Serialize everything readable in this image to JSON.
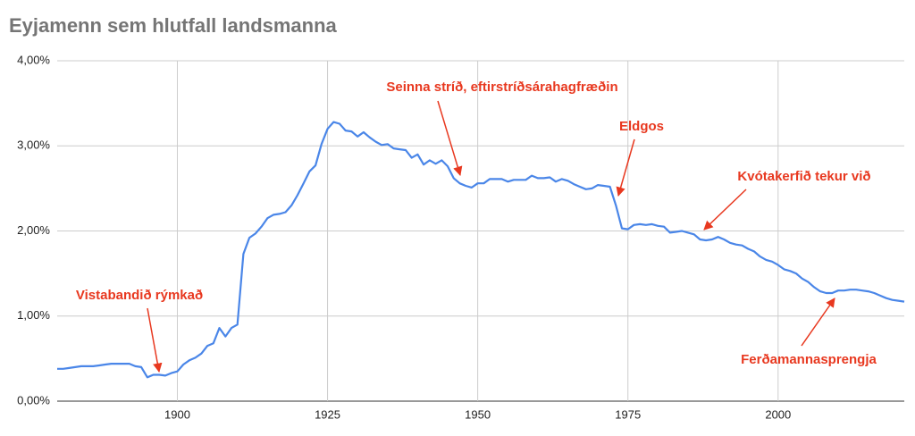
{
  "chart_data": {
    "type": "line",
    "title": "Eyjamenn sem hlutfall landsmanna",
    "x": [
      1880,
      1881,
      1882,
      1883,
      1884,
      1885,
      1886,
      1887,
      1888,
      1889,
      1890,
      1891,
      1892,
      1893,
      1894,
      1895,
      1896,
      1897,
      1898,
      1899,
      1900,
      1901,
      1902,
      1903,
      1904,
      1905,
      1906,
      1907,
      1908,
      1909,
      1910,
      1911,
      1912,
      1913,
      1914,
      1915,
      1916,
      1917,
      1918,
      1919,
      1920,
      1921,
      1922,
      1923,
      1924,
      1925,
      1926,
      1927,
      1928,
      1929,
      1930,
      1931,
      1932,
      1933,
      1934,
      1935,
      1936,
      1937,
      1938,
      1939,
      1940,
      1941,
      1942,
      1943,
      1944,
      1945,
      1946,
      1947,
      1948,
      1949,
      1950,
      1951,
      1952,
      1953,
      1954,
      1955,
      1956,
      1957,
      1958,
      1959,
      1960,
      1961,
      1962,
      1963,
      1964,
      1965,
      1966,
      1967,
      1968,
      1969,
      1970,
      1971,
      1972,
      1973,
      1974,
      1975,
      1976,
      1977,
      1978,
      1979,
      1980,
      1981,
      1982,
      1983,
      1984,
      1985,
      1986,
      1987,
      1988,
      1989,
      1990,
      1991,
      1992,
      1993,
      1994,
      1995,
      1996,
      1997,
      1998,
      1999,
      2000,
      2001,
      2002,
      2003,
      2004,
      2005,
      2006,
      2007,
      2008,
      2009,
      2010,
      2011,
      2012,
      2013,
      2014,
      2015,
      2016,
      2017,
      2018,
      2019,
      2020,
      2021
    ],
    "values": [
      0.38,
      0.38,
      0.39,
      0.4,
      0.41,
      0.41,
      0.41,
      0.42,
      0.43,
      0.44,
      0.44,
      0.44,
      0.44,
      0.41,
      0.4,
      0.28,
      0.31,
      0.31,
      0.3,
      0.33,
      0.35,
      0.43,
      0.48,
      0.51,
      0.56,
      0.65,
      0.68,
      0.86,
      0.76,
      0.86,
      0.9,
      1.73,
      1.92,
      1.97,
      2.05,
      2.15,
      2.19,
      2.2,
      2.22,
      2.3,
      2.42,
      2.56,
      2.7,
      2.77,
      3.02,
      3.2,
      3.28,
      3.26,
      3.18,
      3.17,
      3.11,
      3.16,
      3.1,
      3.05,
      3.01,
      3.02,
      2.97,
      2.96,
      2.95,
      2.86,
      2.9,
      2.78,
      2.83,
      2.79,
      2.83,
      2.76,
      2.62,
      2.56,
      2.53,
      2.51,
      2.56,
      2.56,
      2.61,
      2.61,
      2.61,
      2.58,
      2.6,
      2.6,
      2.6,
      2.65,
      2.62,
      2.62,
      2.63,
      2.58,
      2.61,
      2.59,
      2.55,
      2.52,
      2.49,
      2.5,
      2.54,
      2.53,
      2.52,
      2.3,
      2.03,
      2.02,
      2.07,
      2.08,
      2.07,
      2.08,
      2.06,
      2.05,
      1.98,
      1.99,
      2.0,
      1.98,
      1.96,
      1.9,
      1.89,
      1.9,
      1.93,
      1.9,
      1.86,
      1.84,
      1.83,
      1.79,
      1.76,
      1.7,
      1.66,
      1.64,
      1.6,
      1.55,
      1.53,
      1.5,
      1.44,
      1.4,
      1.34,
      1.29,
      1.27,
      1.27,
      1.3,
      1.3,
      1.31,
      1.31,
      1.3,
      1.29,
      1.27,
      1.24,
      1.21,
      1.19,
      1.18,
      1.17
    ],
    "color": "#4a86e8",
    "xlim": [
      1880,
      2021
    ],
    "xticks": [
      1900,
      1925,
      1950,
      1975,
      2000
    ],
    "ylim": [
      0,
      4
    ],
    "yticks": [
      {
        "value": 0,
        "label": "0,00%"
      },
      {
        "value": 1,
        "label": "1,00%"
      },
      {
        "value": 2,
        "label": "2,00%"
      },
      {
        "value": 3,
        "label": "3,00%"
      },
      {
        "value": 4,
        "label": "4,00%"
      }
    ],
    "grid": true,
    "annotations": [
      "Vistabandið rýmkað",
      "Seinna stríð, eftirstríðsárahagfræðin",
      "Eldgos",
      "Kvótakerfið tekur við",
      "Ferðamannasprengja"
    ],
    "annotation_color": "#e8381f"
  }
}
